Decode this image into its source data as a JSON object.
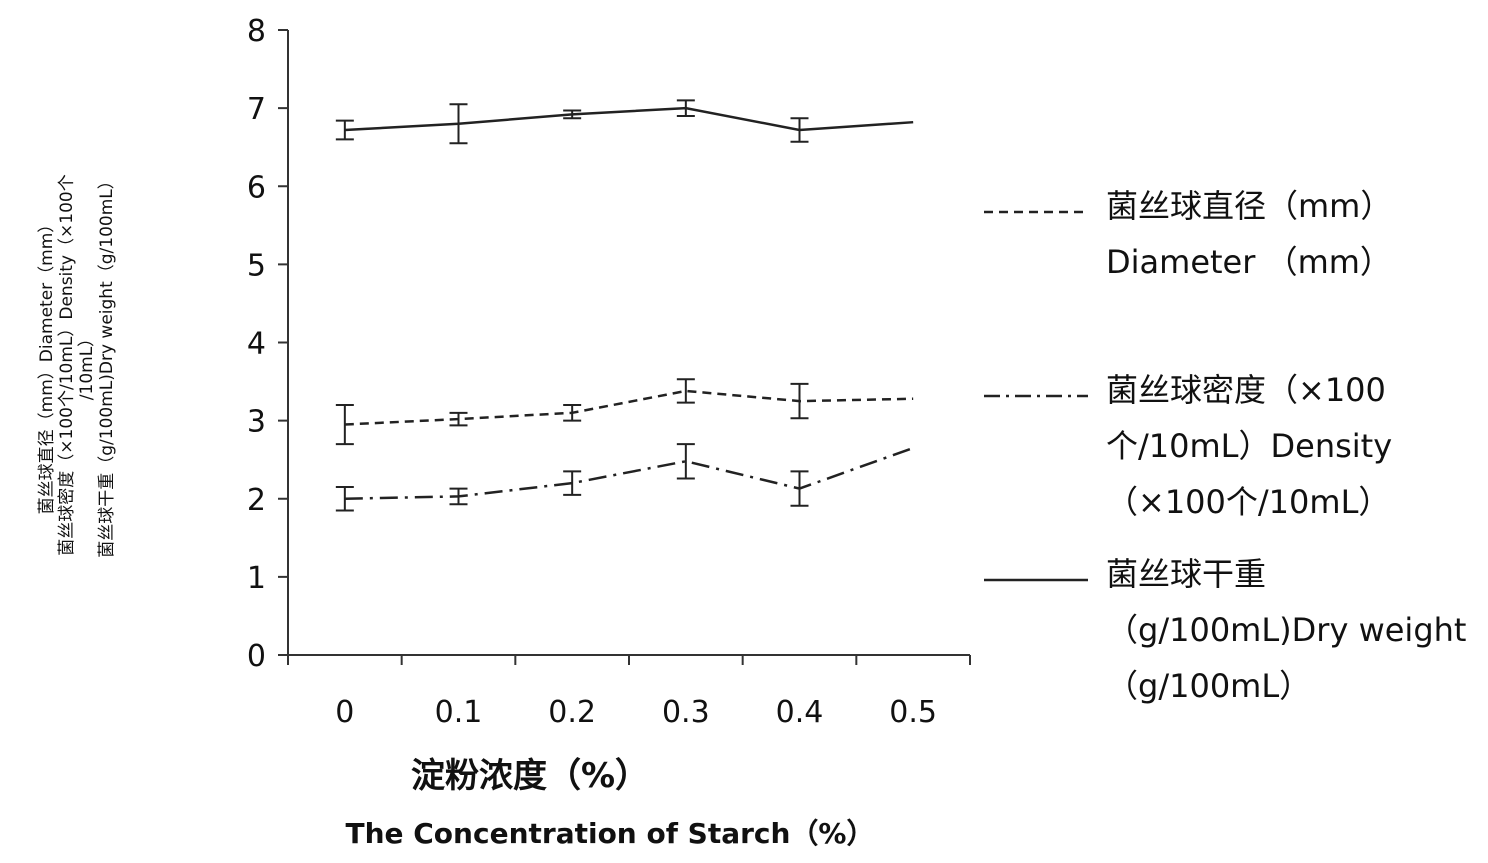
{
  "chart_data": {
    "type": "line",
    "xlabel_cn": "淀粉浓度（%）",
    "xlabel_en": "The Concentration of Starch（%）",
    "ylabel_lines": [
      "菌丝球直径（mm）Diameter（mm）",
      "菌丝球密度（×100个/10mL）Density（×100个",
      "/10mL）",
      "菌丝球干重（g/100mL)Dry weight（g/100mL）"
    ],
    "x": [
      0,
      0.1,
      0.2,
      0.3,
      0.4,
      0.5
    ],
    "x_tick_labels": [
      "0",
      "0.1",
      "0.2",
      "0.3",
      "0.4",
      "0.5"
    ],
    "y_tick_labels": [
      "0",
      "1",
      "2",
      "3",
      "4",
      "5",
      "6",
      "7",
      "8"
    ],
    "ylim": [
      0,
      8
    ],
    "grid": false,
    "legend_placement": "right",
    "series": [
      {
        "name": "菌丝球直径（mm）Diameter （mm）",
        "line_style": "dashed",
        "values": [
          2.95,
          3.02,
          3.1,
          3.38,
          3.25,
          3.28
        ],
        "errors": [
          0.25,
          0.08,
          0.1,
          0.15,
          0.22,
          null
        ]
      },
      {
        "name": "菌丝球密度（×100个/10mL）Density（×100个/10mL）",
        "line_style": "dash-dot",
        "values": [
          2.0,
          2.03,
          2.2,
          2.48,
          2.13,
          2.65
        ],
        "errors": [
          0.15,
          0.1,
          0.15,
          0.22,
          0.22,
          null
        ]
      },
      {
        "name": "菌丝球干重（g/100mL)Dry weight（g/100mL）",
        "line_style": "solid",
        "values": [
          6.72,
          6.8,
          6.92,
          7.0,
          6.72,
          6.82
        ],
        "errors": [
          0.12,
          0.25,
          0.05,
          0.1,
          0.15,
          null
        ]
      }
    ]
  },
  "legend": [
    {
      "text": "菌丝球直径（mm）Diameter （mm）",
      "style": "dashed"
    },
    {
      "text": "菌丝球密度（×100个/10mL）Density（×100个/10mL）",
      "style": "dash-dot"
    },
    {
      "text": "菌丝球干重（g/100mL)Dry weight（g/100mL）",
      "style": "solid"
    }
  ],
  "colors": {
    "line": "#222222",
    "axis": "#333333",
    "background": "#ffffff"
  }
}
